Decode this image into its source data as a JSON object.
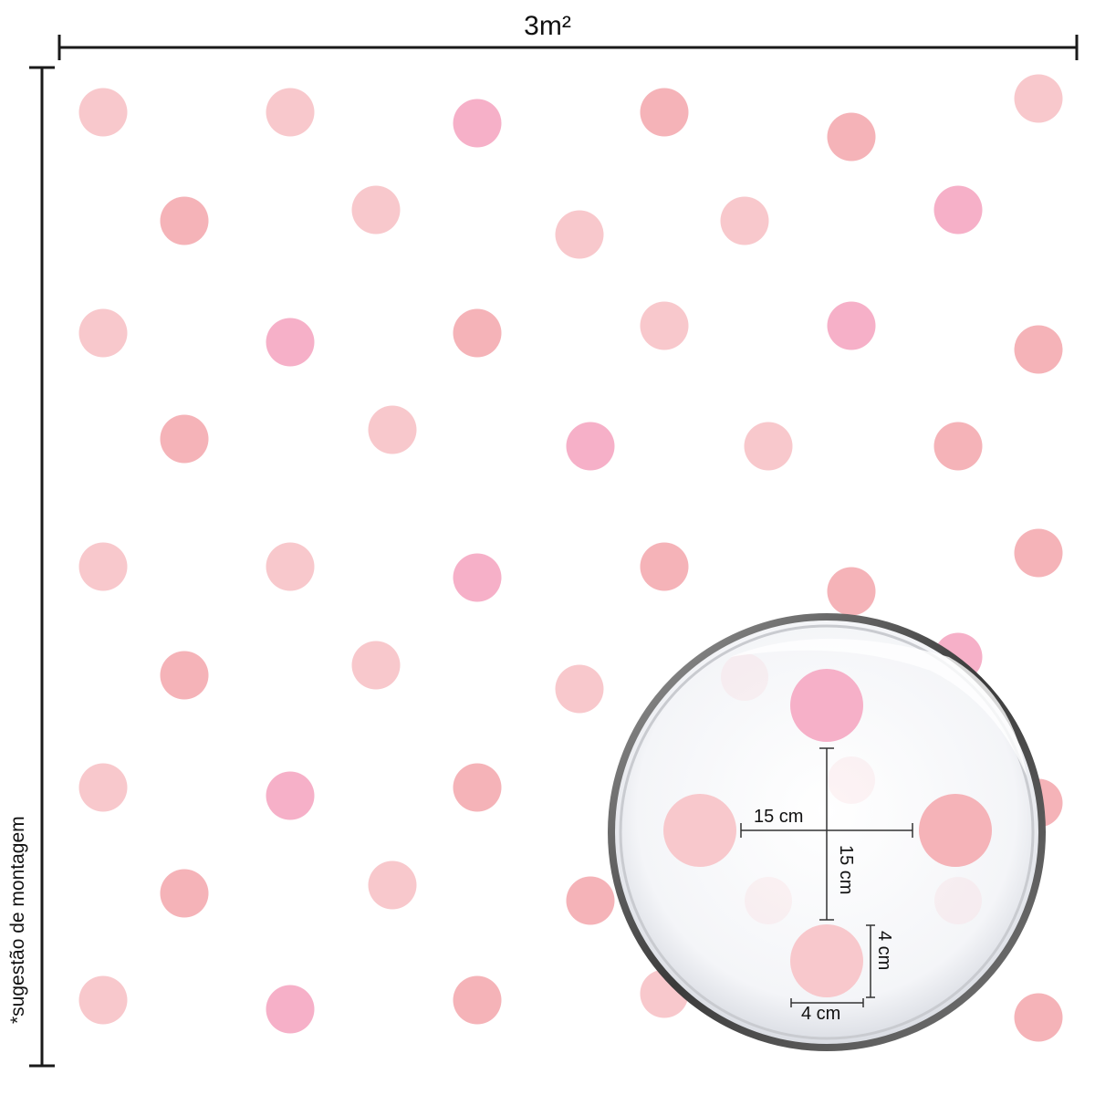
{
  "dimensions": {
    "width_label": "3m²",
    "height_label": "*sugestão de montagem"
  },
  "detail": {
    "horizontal_spacing": "15 cm",
    "vertical_spacing": "15 cm",
    "dot_height": "4 cm",
    "dot_width": "4 cm"
  },
  "colors": {
    "light": "#f8c8cc",
    "salmon": "#f5b3b8",
    "pink": "#f6b0c8",
    "line": "#1a1a1a"
  }
}
